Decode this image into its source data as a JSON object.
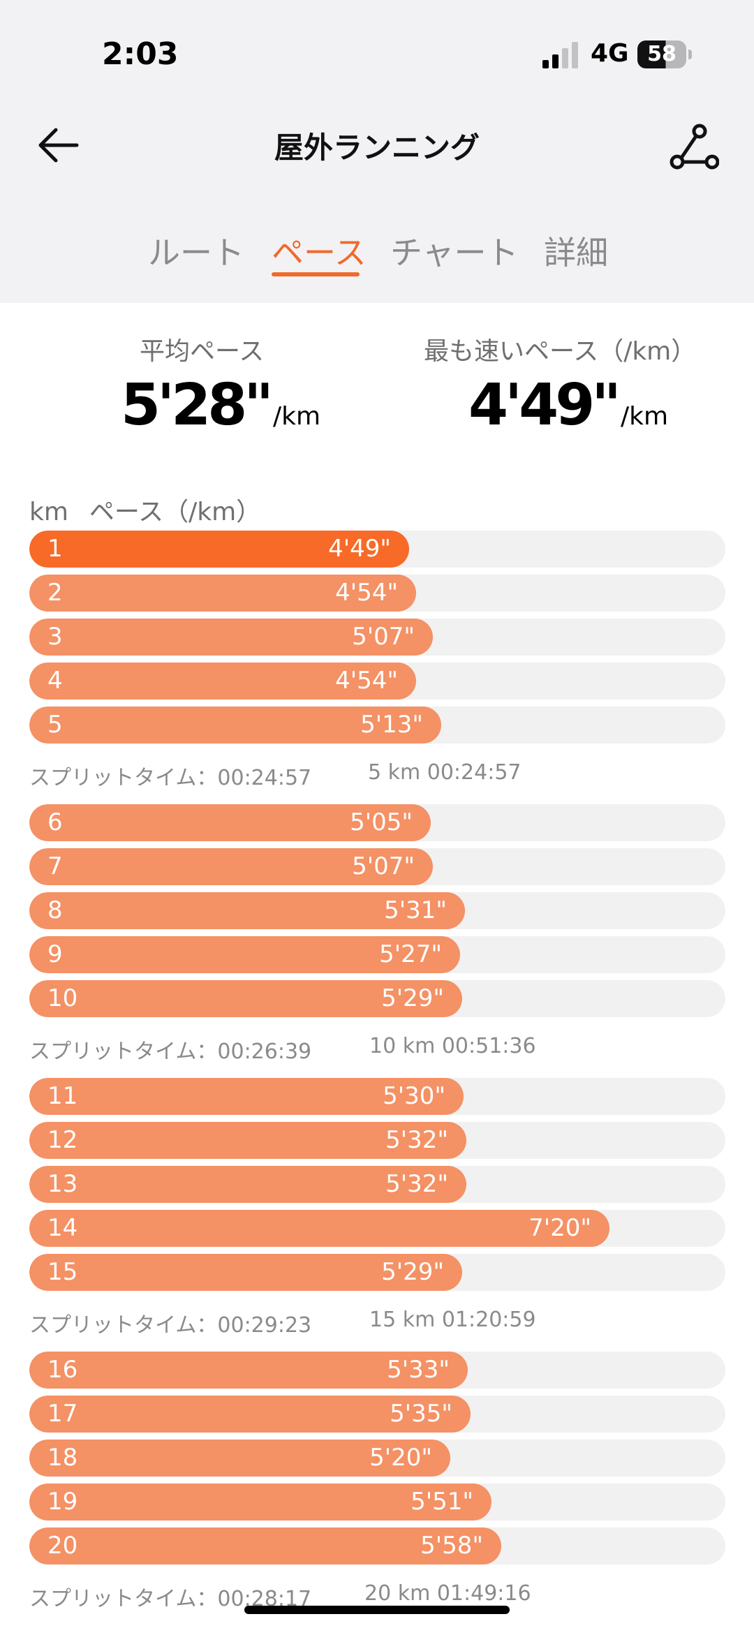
{
  "status_bar": {
    "time": "2:03",
    "network": "4G",
    "battery": "58"
  },
  "header": {
    "title": "屋外ランニング"
  },
  "tabs": [
    {
      "label": "ルート",
      "active": false
    },
    {
      "label": "ペース",
      "active": true
    },
    {
      "label": "チャート",
      "active": false
    },
    {
      "label": "詳細",
      "active": false
    }
  ],
  "summary": {
    "avg_label": "平均ペース",
    "avg_value": "5'28\"",
    "avg_unit": "/km",
    "fast_label": "最も速いペース（/km）",
    "fast_value": "4'49\"",
    "fast_unit": "/km"
  },
  "list_header": {
    "km": "km",
    "pace": "ペース（/km）"
  },
  "accent_color": "#f06a2a",
  "bar_color": "#f49165",
  "fastest_bar_color": "#f86a28",
  "splits": [
    {
      "rows": [
        {
          "km": "1",
          "pace": "4'49\"",
          "fraction": 0.546,
          "fastest": true
        },
        {
          "km": "2",
          "pace": "4'54\"",
          "fraction": 0.556
        },
        {
          "km": "3",
          "pace": "5'07\"",
          "fraction": 0.58
        },
        {
          "km": "4",
          "pace": "4'54\"",
          "fraction": 0.556
        },
        {
          "km": "5",
          "pace": "5'13\"",
          "fraction": 0.592
        }
      ],
      "summary": "スプリットタイム：00:24:57",
      "total": "5 km 00:24:57"
    },
    {
      "rows": [
        {
          "km": "6",
          "pace": "5'05\"",
          "fraction": 0.577
        },
        {
          "km": "7",
          "pace": "5'07\"",
          "fraction": 0.58
        },
        {
          "km": "8",
          "pace": "5'31\"",
          "fraction": 0.626
        },
        {
          "km": "9",
          "pace": "5'27\"",
          "fraction": 0.619
        },
        {
          "km": "10",
          "pace": "5'29\"",
          "fraction": 0.622
        }
      ],
      "summary": "スプリットタイム：00:26:39",
      "total": "10 km 00:51:36"
    },
    {
      "rows": [
        {
          "km": "11",
          "pace": "5'30\"",
          "fraction": 0.624
        },
        {
          "km": "12",
          "pace": "5'32\"",
          "fraction": 0.628
        },
        {
          "km": "13",
          "pace": "5'32\"",
          "fraction": 0.628
        },
        {
          "km": "14",
          "pace": "7'20\"",
          "fraction": 0.833
        },
        {
          "km": "15",
          "pace": "5'29\"",
          "fraction": 0.622
        }
      ],
      "summary": "スプリットタイム：00:29:23",
      "total": "15 km 01:20:59"
    },
    {
      "rows": [
        {
          "km": "16",
          "pace": "5'33\"",
          "fraction": 0.63
        },
        {
          "km": "17",
          "pace": "5'35\"",
          "fraction": 0.634
        },
        {
          "km": "18",
          "pace": "5'20\"",
          "fraction": 0.605
        },
        {
          "km": "19",
          "pace": "5'51\"",
          "fraction": 0.664
        },
        {
          "km": "20",
          "pace": "5'58\"",
          "fraction": 0.678
        }
      ],
      "summary": "スプリットタイム：00:28:17",
      "total": "20 km 01:49:16"
    }
  ]
}
